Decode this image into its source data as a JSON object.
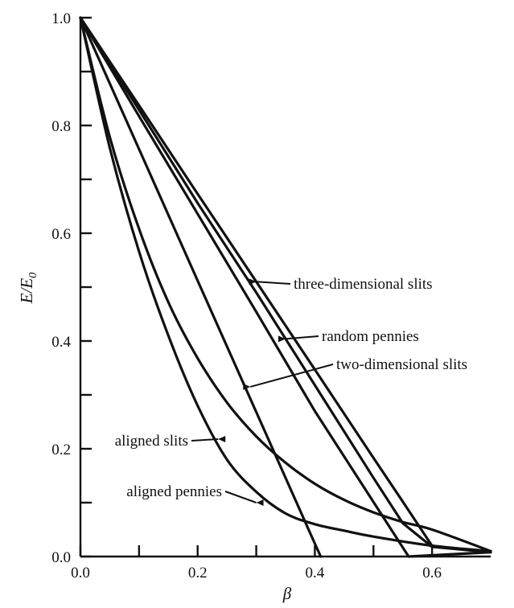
{
  "chart_data": {
    "type": "line",
    "xlabel": "β",
    "ylabel_main": "E/E",
    "ylabel_sub": "0",
    "xlim": [
      0,
      0.7
    ],
    "ylim": [
      0,
      1.0
    ],
    "x_ticks": [
      0.0,
      0.2,
      0.4,
      0.6
    ],
    "x_tick_labels": [
      "0.0",
      "0.2",
      "0.4",
      "0.6"
    ],
    "x_minor_ticks": [
      0.1,
      0.3,
      0.5
    ],
    "y_ticks": [
      0.0,
      0.2,
      0.4,
      0.6,
      0.8,
      1.0
    ],
    "y_tick_labels": [
      "0.0",
      "0.2",
      "0.4",
      "0.6",
      "0.8",
      "1.0"
    ],
    "y_minor_ticks": [
      0.1,
      0.3,
      0.5,
      0.7,
      0.9
    ],
    "grid": false,
    "series": [
      {
        "name": "three-dimensional slits",
        "x": [
          0.0,
          0.1,
          0.2,
          0.3,
          0.4,
          0.5,
          0.55,
          0.6,
          0.7
        ],
        "y": [
          1.0,
          0.837,
          0.673,
          0.51,
          0.347,
          0.183,
          0.102,
          0.02,
          0.008
        ]
      },
      {
        "name": "random pennies",
        "x": [
          0.0,
          0.1,
          0.2,
          0.3,
          0.4,
          0.5,
          0.55,
          0.6,
          0.7
        ],
        "y": [
          1.0,
          0.829,
          0.656,
          0.49,
          0.318,
          0.146,
          0.062,
          0.018,
          0.008
        ]
      },
      {
        "name": "two-dimensional slits",
        "x": [
          0.0,
          0.1,
          0.2,
          0.3,
          0.4,
          0.56,
          0.7
        ],
        "y": [
          1.0,
          0.817,
          0.636,
          0.454,
          0.27,
          0.0,
          0.008
        ]
      },
      {
        "name": "aligned pennies",
        "x": [
          0.0,
          0.05,
          0.1,
          0.15,
          0.2,
          0.25,
          0.3,
          0.35,
          0.4,
          0.45,
          0.5,
          0.55,
          0.6,
          0.7
        ],
        "y": [
          1.0,
          0.779,
          0.608,
          0.472,
          0.368,
          0.286,
          0.223,
          0.174,
          0.135,
          0.105,
          0.082,
          0.064,
          0.05,
          0.01
        ]
      },
      {
        "name": "aligned slits",
        "x": [
          0.0,
          0.05,
          0.1,
          0.15,
          0.2,
          0.25,
          0.3,
          0.35,
          0.4,
          0.45,
          0.5,
          0.6,
          0.7
        ],
        "y": [
          1.0,
          0.759,
          0.566,
          0.41,
          0.28,
          0.18,
          0.12,
          0.08,
          0.06,
          0.048,
          0.037,
          0.02,
          0.01
        ]
      },
      {
        "name": "",
        "x": [
          0.0,
          0.1,
          0.2,
          0.3,
          0.4,
          0.41
        ],
        "y": [
          1.0,
          0.756,
          0.512,
          0.268,
          0.024,
          0.0
        ]
      }
    ],
    "annotations": [
      {
        "text": "three-dimensional slits",
        "series": "three-dimensional slits",
        "x": 0.3,
        "y": 0.51
      },
      {
        "text": "random pennies",
        "series": "random pennies",
        "x": 0.35,
        "y": 0.404
      },
      {
        "text": "two-dimensional slits",
        "series": "two-dimensional slits",
        "x": 0.29,
        "y": 0.315
      },
      {
        "text": "aligned slits",
        "series": "aligned slits",
        "x": 0.235,
        "y": 0.218
      },
      {
        "text": "aligned pennies",
        "series": "aligned pennies",
        "x": 0.3,
        "y": 0.1
      }
    ]
  }
}
